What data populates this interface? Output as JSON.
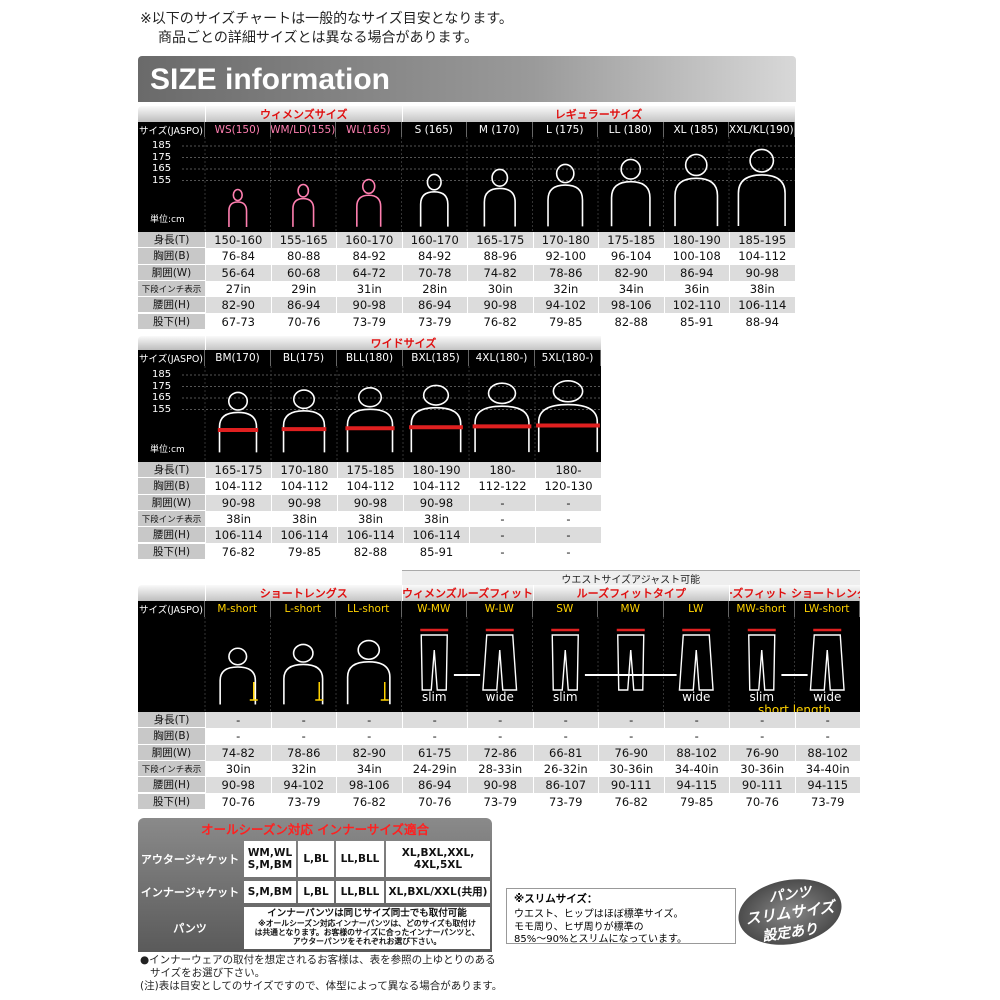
{
  "notice": [
    "※以下のサイズチャートは一般的なサイズ目安となります。",
    "商品ごとの詳細サイズとは異なる場合があります。"
  ],
  "banner": "SIZE information",
  "tables": [
    {
      "groups": [
        {
          "title": "ウィメンズサイズ",
          "columns": [
            "WS(150)",
            "WM/LD(155)",
            "WL(165)"
          ]
        },
        {
          "title": "レギュラーサイズ",
          "columns": [
            "S (165)",
            "M (170)",
            "L (175)",
            "LL (180)",
            "XL (185)",
            "XXL/KL(190)"
          ]
        }
      ],
      "header_label": "サイズ(JASPO)",
      "scale": [
        "185",
        "175",
        "165",
        "155"
      ],
      "unit": "単位:cm",
      "row_labels": [
        "身長(T)",
        "胸囲(B)",
        "胴囲(W)",
        "下段インチ表示",
        "腰囲(H)",
        "股下(H)"
      ],
      "rows": [
        [
          "150-160",
          "155-165",
          "160-170",
          "160-170",
          "165-175",
          "170-180",
          "175-185",
          "180-190",
          "185-195"
        ],
        [
          "76-84",
          "80-88",
          "84-92",
          "84-92",
          "88-96",
          "92-100",
          "96-104",
          "100-108",
          "104-112"
        ],
        [
          "56-64",
          "60-68",
          "64-72",
          "70-78",
          "74-82",
          "78-86",
          "82-90",
          "86-94",
          "90-98"
        ],
        [
          "27in",
          "29in",
          "31in",
          "28in",
          "30in",
          "32in",
          "34in",
          "36in",
          "38in"
        ],
        [
          "82-90",
          "86-94",
          "90-98",
          "86-94",
          "90-98",
          "94-102",
          "98-106",
          "102-110",
          "106-114"
        ],
        [
          "67-73",
          "70-76",
          "73-79",
          "73-79",
          "76-82",
          "79-85",
          "82-88",
          "85-91",
          "88-94"
        ]
      ]
    },
    {
      "groups": [
        {
          "title": "ワイドサイズ",
          "columns": [
            "BM(170)",
            "BL(175)",
            "BLL(180)",
            "BXL(185)",
            "4XL(180-)",
            "5XL(180-)"
          ]
        }
      ],
      "header_label": "サイズ(JASPO)",
      "scale": [
        "185",
        "175",
        "165",
        "155"
      ],
      "unit": "単位:cm",
      "row_labels": [
        "身長(T)",
        "胸囲(B)",
        "胴囲(W)",
        "下段インチ表示",
        "腰囲(H)",
        "股下(H)"
      ],
      "rows": [
        [
          "165-175",
          "170-180",
          "175-185",
          "180-190",
          "180-",
          "180-"
        ],
        [
          "104-112",
          "104-112",
          "104-112",
          "104-112",
          "112-122",
          "120-130"
        ],
        [
          "90-98",
          "90-98",
          "90-98",
          "90-98",
          "-",
          "-"
        ],
        [
          "38in",
          "38in",
          "38in",
          "38in",
          "-",
          "-"
        ],
        [
          "106-114",
          "106-114",
          "106-114",
          "106-114",
          "-",
          "-"
        ],
        [
          "76-82",
          "79-85",
          "82-88",
          "85-91",
          "-",
          "-"
        ]
      ]
    },
    {
      "top_note": "ウエストサイズアジャスト可能",
      "groups": [
        {
          "title": "ショートレングス",
          "columns": [
            "M-short",
            "L-short",
            "LL-short"
          ]
        },
        {
          "title": "ウィメンズルーズフィット",
          "columns": [
            "W-MW",
            "W-LW"
          ],
          "captions": [
            "slim",
            "wide"
          ]
        },
        {
          "title": "ルーズフィットタイプ",
          "columns": [
            "SW",
            "MW",
            "LW"
          ],
          "captions": [
            "slim",
            "wide"
          ]
        },
        {
          "title": "ルーズフィット ショートレングス",
          "columns": [
            "MW-short",
            "LW-short"
          ],
          "captions": [
            "slim",
            "wide",
            "short length"
          ]
        }
      ],
      "header_label": "サイズ(JASPO)",
      "row_labels": [
        "身長(T)",
        "胸囲(B)",
        "胴囲(W)",
        "下段インチ表示",
        "腰囲(H)",
        "股下(H)"
      ],
      "rows": [
        [
          "-",
          "-",
          "-",
          "-",
          "-",
          "-",
          "-",
          "-",
          "-",
          "-"
        ],
        [
          "-",
          "-",
          "-",
          "-",
          "-",
          "-",
          "-",
          "-",
          "-",
          "-"
        ],
        [
          "74-82",
          "78-86",
          "82-90",
          "61-75",
          "72-86",
          "66-81",
          "76-90",
          "88-102",
          "76-90",
          "88-102"
        ],
        [
          "30in",
          "32in",
          "34in",
          "24-29in",
          "28-33in",
          "26-32in",
          "30-36in",
          "34-40in",
          "30-36in",
          "34-40in"
        ],
        [
          "90-98",
          "94-102",
          "98-106",
          "86-94",
          "90-98",
          "86-107",
          "90-111",
          "94-115",
          "90-111",
          "94-115"
        ],
        [
          "70-76",
          "73-79",
          "76-82",
          "70-76",
          "73-79",
          "73-79",
          "76-82",
          "79-85",
          "70-76",
          "73-79"
        ]
      ]
    }
  ],
  "inner": {
    "title": "オールシーズン対応 インナーサイズ適合",
    "rows": [
      {
        "label": "アウタージャケット",
        "cells": [
          [
            "WM,WL",
            "S,M,BM"
          ],
          [
            "L,BL"
          ],
          [
            "LL,BLL"
          ],
          [
            "XL,BXL,XXL,",
            "4XL,5XL"
          ]
        ]
      },
      {
        "label": "インナージャケット",
        "cells": [
          [
            "S,M,BM"
          ],
          [
            "L,BL"
          ],
          [
            "LL,BLL"
          ],
          [
            "XL,BXL/XXL(共用)"
          ]
        ]
      },
      {
        "label": "パンツ",
        "cells": [
          [
            "インナーパンツは同じサイズ同士でも取付可能",
            "※オールシーズン対応インナーパンツは、どのサイズも取付け",
            "は共通となります。お客様のサイズに合ったインナーパンツと、",
            "アウターパンツをそれぞれお選び下さい。"
          ]
        ]
      }
    ]
  },
  "slim_note": {
    "title": "※スリムサイズ：",
    "lines": [
      "ウエスト、ヒップはほぼ標準サイズ。",
      "モモ周り、ヒザ周りが標準の",
      "85%～90%とスリムになっています。"
    ]
  },
  "badge": [
    "パンツ",
    "スリムサイズ",
    "設定あり"
  ],
  "footer": [
    "●インナーウェアの取付を想定されるお客様は、表を参照の上ゆとりのある",
    "サイズをお選び下さい。",
    "(注)表は目安としてのサイズですので、体型によって異なる場合があります。"
  ]
}
